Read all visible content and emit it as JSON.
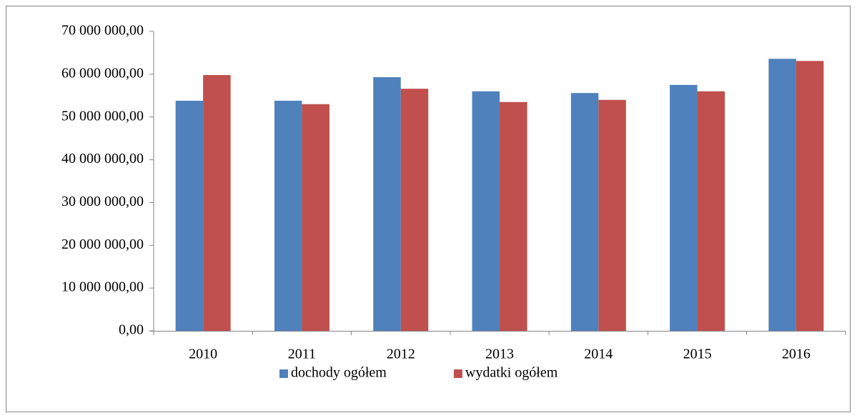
{
  "chart_data": {
    "type": "bar",
    "categories": [
      "2010",
      "2011",
      "2012",
      "2013",
      "2014",
      "2015",
      "2016"
    ],
    "series": [
      {
        "name": "dochody ogółem",
        "color": "#4f81bd",
        "values": [
          53800000,
          53800000,
          59300000,
          56000000,
          55600000,
          57500000,
          63600000
        ]
      },
      {
        "name": "wydatki ogółem",
        "color": "#c0504d",
        "values": [
          59800000,
          53000000,
          56600000,
          53500000,
          54000000,
          56000000,
          63100000
        ]
      }
    ],
    "ylim": [
      0,
      70000000
    ],
    "yticks": [
      {
        "value": 0,
        "label": "0,00"
      },
      {
        "value": 10000000,
        "label": "10 000 000,00"
      },
      {
        "value": 20000000,
        "label": "20 000 000,00"
      },
      {
        "value": 30000000,
        "label": "30 000 000,00"
      },
      {
        "value": 40000000,
        "label": "40 000 000,00"
      },
      {
        "value": 50000000,
        "label": "50 000 000,00"
      },
      {
        "value": 60000000,
        "label": "60 000 000,00"
      },
      {
        "value": 70000000,
        "label": "70 000 000,00"
      }
    ],
    "grid": false,
    "legend": "bottom"
  }
}
